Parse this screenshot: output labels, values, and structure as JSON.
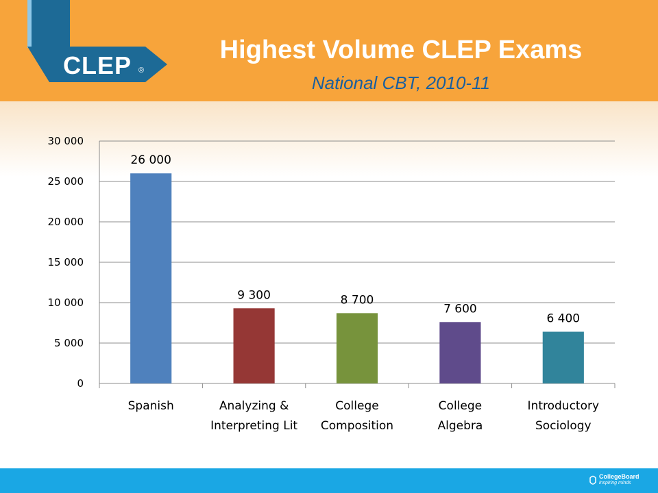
{
  "header": {
    "title": "Highest Volume CLEP Exams",
    "subtitle": "National CBT, 2010-11",
    "logo_text": "CLEP",
    "logo_mark": "®"
  },
  "footer": {
    "brand_name": "CollegeBoard",
    "brand_tagline": "inspiring minds"
  },
  "colors": {
    "header_bg": "#f7a43b",
    "footer_bg": "#1aa7e4",
    "title": "#ffffff",
    "subtitle": "#1a5f9e",
    "logo_banner": "#1d6a96"
  },
  "chart_data": {
    "type": "bar",
    "title": "",
    "xlabel": "",
    "ylabel": "",
    "categories": [
      [
        "Spanish"
      ],
      [
        "Analyzing &",
        "Interpreting Lit"
      ],
      [
        "College",
        "Composition"
      ],
      [
        "College",
        "Algebra"
      ],
      [
        "Introductory",
        "Sociology"
      ]
    ],
    "values": [
      26000,
      9300,
      8700,
      7600,
      6400
    ],
    "data_labels": [
      "26 000",
      "9 300",
      "8 700",
      "7 600",
      "6 400"
    ],
    "bar_colors": [
      "#4f81bd",
      "#953735",
      "#77933c",
      "#5f4b8b",
      "#31849b"
    ],
    "ylim": [
      0,
      30000
    ],
    "yticks": [
      0,
      5000,
      10000,
      15000,
      20000,
      25000,
      30000
    ],
    "ytick_labels": [
      "0",
      "5 000",
      "10 000",
      "15 000",
      "20 000",
      "25 000",
      "30 000"
    ],
    "grid": true,
    "legend": "none"
  }
}
